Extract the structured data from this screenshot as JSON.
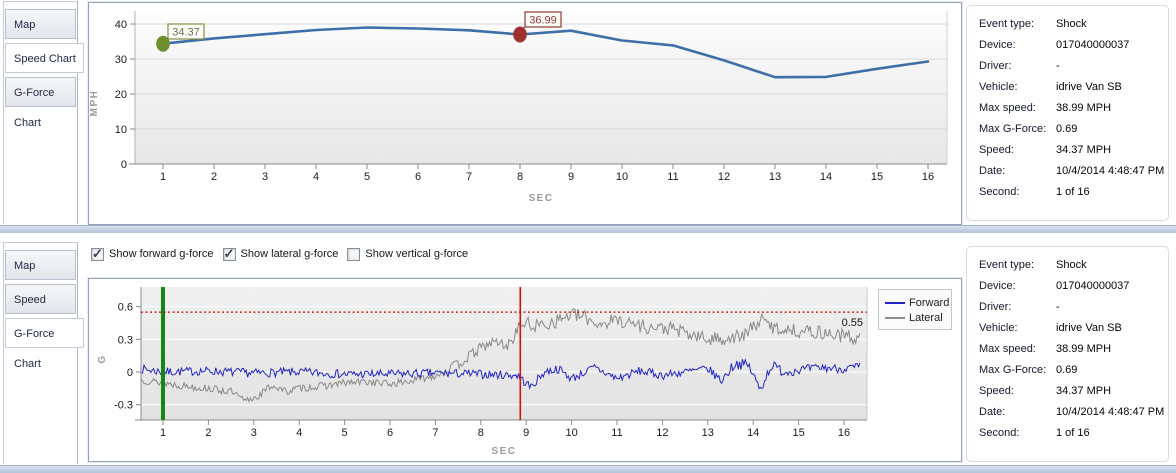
{
  "tabs": {
    "items": [
      "Map",
      "Speed Chart",
      "G-Force Chart"
    ]
  },
  "speed_section": {
    "active_tab": "Speed Chart"
  },
  "gforce_section": {
    "active_tab": "G-Force Chart",
    "checkboxes": [
      {
        "label": "Show forward g-force",
        "checked": true
      },
      {
        "label": "Show lateral g-force",
        "checked": true
      },
      {
        "label": "Show vertical g-force",
        "checked": false
      }
    ]
  },
  "details": {
    "rows": [
      {
        "label": "Event type:",
        "value": "Shock"
      },
      {
        "label": "Device:",
        "value": "017040000037"
      },
      {
        "label": "Driver:",
        "value": "-"
      },
      {
        "label": "Vehicle:",
        "value": "idrive Van SB"
      },
      {
        "label": "Max speed:",
        "value": "38.99 MPH"
      },
      {
        "label": "Max G-Force:",
        "value": "0.69"
      },
      {
        "label": "Speed:",
        "value": "34.37 MPH"
      },
      {
        "label": "Date:",
        "value": "10/4/2014 4:48:47 PM"
      },
      {
        "label": "Second:",
        "value": "1 of 16"
      }
    ]
  },
  "chart_data": [
    {
      "id": "speed",
      "type": "line",
      "title": "",
      "xlabel": "SEC",
      "ylabel": "MPH",
      "x": [
        1,
        2,
        3,
        4,
        5,
        6,
        7,
        8,
        9,
        10,
        11,
        12,
        13,
        14,
        15,
        16
      ],
      "values": [
        34.37,
        35.9,
        37.1,
        38.3,
        38.99,
        38.7,
        38.2,
        36.99,
        38.1,
        35.3,
        33.9,
        29.6,
        24.8,
        24.9,
        27.2,
        29.3
      ],
      "ylim": [
        0,
        43.7
      ],
      "yticks": [
        0,
        10,
        20,
        30,
        40
      ],
      "grid": true,
      "line_color": "#3f6fa8",
      "markers": [
        {
          "x": 1,
          "value": 34.37,
          "label": "34.37",
          "marker_color": "#6f8f2f",
          "box_border": "#7f8f4a",
          "text_color": "#6b7158"
        },
        {
          "x": 8,
          "value": 36.99,
          "label": "36.99",
          "marker_color": "#a03030",
          "box_border": "#8f3a3a",
          "text_color": "#8f3a3a"
        }
      ]
    },
    {
      "id": "gforce",
      "type": "line-noisy",
      "title": "",
      "xlabel": "SEC",
      "ylabel": "G",
      "xlim": [
        0.52,
        16.5
      ],
      "ylim": [
        -0.44,
        0.78
      ],
      "xticks": [
        1,
        2,
        3,
        4,
        5,
        6,
        7,
        8,
        9,
        10,
        11,
        12,
        13,
        14,
        15,
        16
      ],
      "yticks": [
        -0.3,
        0,
        0.3,
        0.6
      ],
      "grid": true,
      "legend_position": "top-right",
      "threshold": {
        "value": 0.55,
        "label": "0.55",
        "color": "#cc0000"
      },
      "event_line": {
        "x": 1,
        "color": "#128a12"
      },
      "cursor_line": {
        "x": 8.87,
        "color": "#d01010"
      },
      "series": [
        {
          "name": "Forward",
          "color": "#2424cc",
          "trend_x": [
            0.5,
            1,
            2,
            3,
            4,
            5,
            6,
            7,
            8,
            8.8,
            9.1,
            9.4,
            9.7,
            10,
            10.5,
            11,
            11.5,
            12,
            12.5,
            13,
            13.3,
            13.6,
            13.9,
            14.15,
            14.4,
            14.7,
            15,
            15.5,
            16,
            16.4
          ],
          "trend_y": [
            0.03,
            0.0,
            0.01,
            -0.01,
            0.0,
            -0.02,
            -0.02,
            -0.01,
            -0.02,
            -0.03,
            -0.14,
            0.0,
            0.03,
            -0.06,
            0.04,
            -0.06,
            0.01,
            -0.03,
            0.0,
            0.03,
            -0.08,
            0.08,
            0.06,
            -0.16,
            0.06,
            0.0,
            0.02,
            0.04,
            0.03,
            0.05
          ],
          "noise": [
            0.04,
            0.04,
            0.04,
            0.04,
            0.04,
            0.04,
            0.04,
            0.04,
            0.04,
            0.04,
            0.04,
            0.04,
            0.04,
            0.04,
            0.04,
            0.04,
            0.04,
            0.04,
            0.04,
            0.04,
            0.04,
            0.05,
            0.05,
            0.05,
            0.05,
            0.05,
            0.04,
            0.04,
            0.04,
            0.04
          ],
          "seed": 7
        },
        {
          "name": "Lateral",
          "color": "#8a8a8a",
          "trend_x": [
            0.5,
            1,
            1.5,
            2,
            2.5,
            2.8,
            3.1,
            3.4,
            3.7,
            4,
            4.5,
            5,
            5.5,
            6,
            6.5,
            7,
            7.5,
            8,
            8.3,
            8.6,
            8.9,
            9.2,
            9.6,
            10,
            10.3,
            10.6,
            11,
            11.4,
            11.8,
            12.2,
            12.6,
            13,
            13.4,
            13.8,
            14.15,
            14.5,
            15,
            15.5,
            16,
            16.4
          ],
          "trend_y": [
            -0.07,
            -0.1,
            -0.13,
            -0.15,
            -0.18,
            -0.27,
            -0.22,
            -0.12,
            -0.18,
            -0.15,
            -0.13,
            -0.1,
            -0.09,
            -0.11,
            -0.08,
            -0.03,
            0.07,
            0.22,
            0.28,
            0.24,
            0.45,
            0.42,
            0.46,
            0.53,
            0.5,
            0.44,
            0.48,
            0.44,
            0.4,
            0.4,
            0.34,
            0.3,
            0.31,
            0.33,
            0.48,
            0.4,
            0.38,
            0.36,
            0.33,
            0.3
          ],
          "noise": [
            0.035,
            0.035,
            0.035,
            0.035,
            0.035,
            0.035,
            0.035,
            0.035,
            0.035,
            0.035,
            0.035,
            0.035,
            0.035,
            0.035,
            0.035,
            0.035,
            0.05,
            0.05,
            0.05,
            0.05,
            0.065,
            0.065,
            0.065,
            0.065,
            0.065,
            0.065,
            0.065,
            0.065,
            0.065,
            0.065,
            0.065,
            0.065,
            0.065,
            0.065,
            0.065,
            0.065,
            0.065,
            0.065,
            0.065,
            0.065
          ],
          "seed": 13
        }
      ]
    }
  ]
}
